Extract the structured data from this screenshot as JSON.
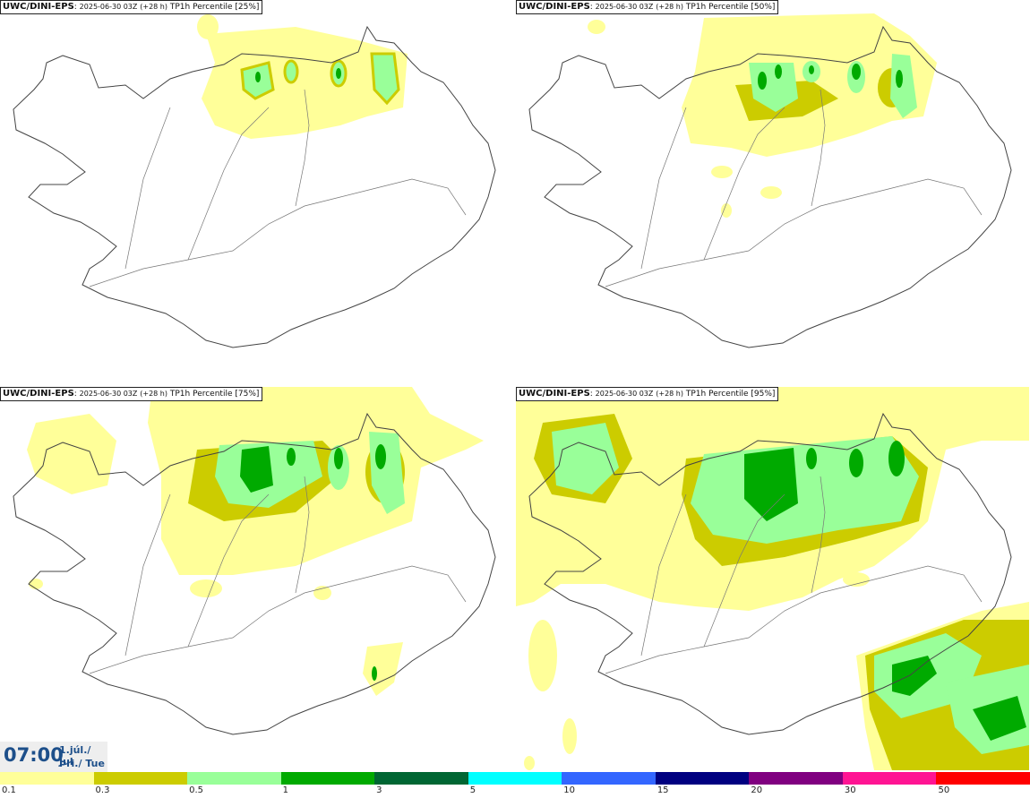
{
  "panels": [
    {
      "model": "UWC/DINI-EPS",
      "run": "2025-06-30 03Z",
      "lead": "(+28 h)",
      "field": "TP1h Percentile [25%]"
    },
    {
      "model": "UWC/DINI-EPS",
      "run": "2025-06-30 03Z",
      "lead": "(+28 h)",
      "field": "TP1h Percentile [50%]"
    },
    {
      "model": "UWC/DINI-EPS",
      "run": "2025-06-30 03Z",
      "lead": "(+28 h)",
      "field": "TP1h Percentile [75%]"
    },
    {
      "model": "UWC/DINI-EPS",
      "run": "2025-06-30 03Z",
      "lead": "(+28 h)",
      "field": "TP1h Percentile [95%]"
    }
  ],
  "valid_time": {
    "time": "07:00",
    "date_line": "1.júl./ Jul",
    "weekday_line": "Þri./ Tue"
  },
  "colorbar": {
    "thresholds": [
      "0.1",
      "0.3",
      "0.5",
      "1",
      "3",
      "5",
      "10",
      "15",
      "20",
      "30",
      "50"
    ],
    "colors": [
      "#ffff99",
      "#cccc00",
      "#99ff99",
      "#00aa00",
      "#006633",
      "#00ffff",
      "#3366ff",
      "#000080",
      "#800080",
      "#ff1493",
      "#ff0000"
    ]
  }
}
